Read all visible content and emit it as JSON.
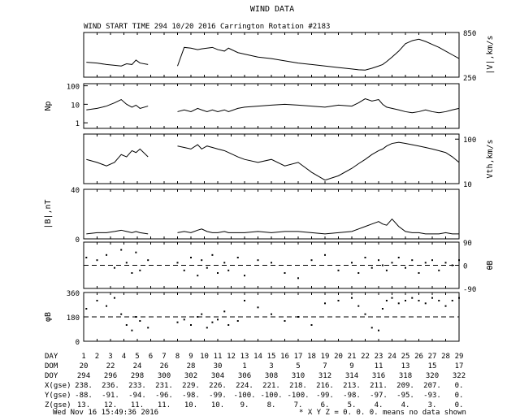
{
  "header": {
    "title": "WIND DATA",
    "subtitle": "WIND START TIME 294 10/20 2016 Carrington Rotation #2183"
  },
  "footer": {
    "timestamp": "Wed Nov 16 15:49:36 2016",
    "note": "* X Y Z = 0. 0. 0. means no data shown"
  },
  "table": {
    "row_labels": [
      "DAY",
      "DOM",
      "DOY",
      "X(gse)",
      "Y(gse)",
      "Z(gse)"
    ],
    "day": [
      "1",
      "2",
      "3",
      "4",
      "5",
      "6",
      "7",
      "8",
      "9",
      "10",
      "11",
      "12",
      "13",
      "14",
      "15",
      "16",
      "17",
      "18",
      "19",
      "20",
      "21",
      "22",
      "23",
      "24",
      "25",
      "26",
      "27",
      "28",
      "29"
    ],
    "dom": [
      "20",
      "22",
      "24",
      "26",
      "28",
      "30",
      "1",
      "3",
      "5",
      "7",
      "9",
      "11",
      "13",
      "15",
      "17"
    ],
    "doy": [
      "294",
      "296",
      "298",
      "300",
      "302",
      "304",
      "306",
      "308",
      "310",
      "312",
      "314",
      "316",
      "318",
      "320",
      "322"
    ],
    "x_gse": [
      "238.",
      "236.",
      "233.",
      "231.",
      "229.",
      "226.",
      "224.",
      "221.",
      "218.",
      "216.",
      "213.",
      "211.",
      "209.",
      "207.",
      "0."
    ],
    "y_gse": [
      "-88.",
      "-91.",
      "-94.",
      "-96.",
      "-98.",
      "-99.",
      "-100.",
      "-100.",
      "-100.",
      "-99.",
      "-98.",
      "-97.",
      "-95.",
      "-93.",
      "0."
    ],
    "z_gse": [
      "13.",
      "12.",
      "11.",
      "11.",
      "10.",
      "10.",
      "9.",
      "8.",
      "7.",
      "6.",
      "5.",
      "4.",
      "4.",
      "3.",
      "0."
    ]
  },
  "chart_data": {
    "type": "line",
    "xlim": [
      294,
      322
    ],
    "panels": [
      {
        "id": "speed",
        "ylabel": "|V|,km/s",
        "label_side": "right",
        "ylim": [
          250,
          850
        ],
        "scale": "linear",
        "ticks": [
          "850",
          "250"
        ],
        "tick_values": [
          850,
          250
        ],
        "dashed": null,
        "style": "line",
        "x": [
          294.2,
          295,
          295.7,
          296.3,
          296.8,
          297.2,
          297.6,
          297.9,
          298.2,
          298.8,
          301,
          301.5,
          302,
          302.5,
          302.8,
          303.2,
          303.6,
          304,
          304.5,
          304.8,
          305.5,
          306,
          307,
          308,
          309,
          310,
          311,
          312,
          313,
          314,
          314.5,
          315,
          315.5,
          316,
          316.3,
          316.6,
          317,
          317.5,
          318,
          318.5,
          319,
          319.5,
          320,
          320.5,
          321,
          321.5,
          322
        ],
        "y": [
          450,
          440,
          420,
          410,
          400,
          430,
          420,
          480,
          440,
          420,
          400,
          650,
          640,
          620,
          630,
          640,
          650,
          620,
          600,
          640,
          580,
          560,
          520,
          500,
          470,
          440,
          420,
          400,
          380,
          360,
          350,
          345,
          370,
          400,
          420,
          460,
          520,
          600,
          700,
          740,
          760,
          730,
          690,
          650,
          600,
          550,
          500
        ]
      },
      {
        "id": "density",
        "ylabel": "Np",
        "label_side": "left",
        "ylim": [
          0.5,
          130
        ],
        "scale": "log",
        "ticks": [
          "100",
          "10",
          "1"
        ],
        "tick_values": [
          100,
          10,
          1
        ],
        "dashed": null,
        "style": "line",
        "x": [
          294.2,
          295,
          295.7,
          296.3,
          296.8,
          297.2,
          297.6,
          297.9,
          298.2,
          298.8,
          301,
          301.5,
          302,
          302.5,
          302.8,
          303.2,
          303.6,
          304,
          304.5,
          304.8,
          305.5,
          306,
          307,
          308,
          309,
          310,
          311,
          312,
          313,
          314,
          314.5,
          315,
          315.5,
          316,
          316.3,
          316.6,
          317,
          317.5,
          318,
          318.5,
          319,
          319.5,
          320,
          320.5,
          321,
          321.5,
          322
        ],
        "y": [
          5,
          6,
          8,
          12,
          18,
          10,
          7,
          9,
          6,
          8,
          4,
          5,
          4,
          6,
          5,
          4,
          5,
          4,
          5,
          4,
          6,
          7,
          8,
          9,
          10,
          9,
          8,
          7,
          9,
          8,
          12,
          20,
          15,
          18,
          10,
          7,
          6,
          5,
          4,
          3.5,
          4,
          5,
          4,
          3.5,
          4,
          5,
          6
        ]
      },
      {
        "id": "thermal",
        "ylabel": "Vth,km/s",
        "label_side": "right",
        "ylim": [
          10,
          130
        ],
        "scale": "log",
        "ticks": [
          "100",
          "10"
        ],
        "tick_values": [
          100,
          10
        ],
        "dashed": null,
        "style": "line",
        "x": [
          294.2,
          295,
          295.7,
          296.3,
          296.8,
          297.2,
          297.6,
          297.9,
          298.2,
          298.8,
          301,
          301.5,
          302,
          302.5,
          302.8,
          303.2,
          303.6,
          304,
          304.5,
          304.8,
          305.5,
          306,
          307,
          308,
          309,
          310,
          311,
          312,
          313,
          314,
          314.5,
          315,
          315.5,
          316,
          316.3,
          316.6,
          317,
          317.5,
          318,
          318.5,
          319,
          319.5,
          320,
          320.5,
          321,
          321.5,
          322
        ],
        "y": [
          35,
          30,
          25,
          30,
          45,
          40,
          55,
          50,
          60,
          40,
          70,
          65,
          60,
          75,
          60,
          70,
          65,
          60,
          55,
          50,
          40,
          35,
          30,
          35,
          25,
          30,
          18,
          12,
          15,
          22,
          28,
          35,
          45,
          55,
          60,
          70,
          80,
          85,
          80,
          75,
          70,
          65,
          60,
          55,
          50,
          40,
          30
        ]
      },
      {
        "id": "field",
        "ylabel": "|B|,nT",
        "label_side": "left",
        "ylim": [
          0,
          40
        ],
        "scale": "linear",
        "ticks": [
          "40",
          "0"
        ],
        "tick_values": [
          40,
          0
        ],
        "dashed": null,
        "style": "line",
        "x": [
          294.2,
          295,
          295.7,
          296.3,
          296.8,
          297.2,
          297.6,
          297.9,
          298.2,
          298.8,
          301,
          301.5,
          302,
          302.5,
          302.8,
          303.2,
          303.6,
          304,
          304.5,
          304.8,
          305.5,
          306,
          307,
          308,
          309,
          310,
          311,
          312,
          313,
          314,
          314.5,
          315,
          315.5,
          316,
          316.3,
          316.6,
          317,
          317.5,
          318,
          318.5,
          319,
          319.5,
          320,
          320.5,
          321,
          321.5,
          322
        ],
        "y": [
          4,
          5,
          5,
          6,
          7,
          6,
          5,
          6,
          5,
          4,
          5,
          6,
          5,
          7,
          8,
          6,
          5,
          5,
          6,
          5,
          5,
          5,
          6,
          5,
          6,
          6,
          5,
          4,
          5,
          6,
          8,
          10,
          12,
          14,
          12,
          11,
          16,
          10,
          6,
          5,
          5,
          4,
          4,
          4,
          5,
          4,
          4
        ]
      },
      {
        "id": "theta",
        "ylabel": "θB",
        "label_side": "right",
        "ylim": [
          -90,
          90
        ],
        "scale": "linear",
        "ticks": [
          "90",
          "0",
          "-90"
        ],
        "tick_values": [
          90,
          0,
          -90
        ],
        "dashed": 0,
        "style": "scatter",
        "x": [
          294.2,
          295,
          295.7,
          296.3,
          296.8,
          297.2,
          297.6,
          297.9,
          298.2,
          298.8,
          301,
          301.5,
          302,
          302.5,
          302.8,
          303.2,
          303.6,
          304,
          304.5,
          304.8,
          305.5,
          306,
          307,
          308,
          309,
          310,
          311,
          312,
          313,
          314,
          314.5,
          315,
          315.5,
          316,
          316.3,
          316.6,
          317,
          317.5,
          318,
          318.5,
          319,
          319.5,
          320,
          320.5,
          321,
          321.5,
          322
        ],
        "y": [
          30,
          20,
          40,
          -10,
          60,
          10,
          -30,
          50,
          -20,
          20,
          10,
          -20,
          30,
          -40,
          20,
          -10,
          40,
          -30,
          10,
          -20,
          30,
          -40,
          20,
          10,
          -30,
          -50,
          20,
          40,
          -20,
          10,
          -30,
          30,
          -10,
          20,
          0,
          -20,
          10,
          30,
          -10,
          20,
          -30,
          10,
          20,
          -20,
          10,
          0,
          20
        ]
      },
      {
        "id": "phi",
        "ylabel": "φB",
        "label_side": "left",
        "ylim": [
          0,
          360
        ],
        "scale": "linear",
        "ticks": [
          "360",
          "180",
          "0"
        ],
        "tick_values": [
          360,
          180,
          0
        ],
        "dashed": 180,
        "style": "scatter",
        "x": [
          294.2,
          295,
          295.7,
          296.3,
          296.8,
          297.2,
          297.6,
          297.9,
          298.2,
          298.8,
          301,
          301.5,
          302,
          302.5,
          302.8,
          303.2,
          303.6,
          304,
          304.5,
          304.8,
          305.5,
          306,
          307,
          308,
          309,
          310,
          311,
          312,
          313,
          314,
          314.5,
          315,
          315.5,
          316,
          316.3,
          316.6,
          317,
          317.5,
          318,
          318.5,
          319,
          319.5,
          320,
          320.5,
          321,
          321.5,
          322
        ],
        "y": [
          240,
          300,
          260,
          320,
          200,
          120,
          80,
          180,
          150,
          100,
          140,
          160,
          120,
          180,
          200,
          100,
          140,
          160,
          220,
          120,
          150,
          300,
          250,
          200,
          150,
          180,
          120,
          280,
          300,
          320,
          260,
          200,
          100,
          80,
          240,
          300,
          320,
          280,
          300,
          320,
          300,
          280,
          320,
          300,
          260,
          300,
          320
        ]
      }
    ]
  }
}
